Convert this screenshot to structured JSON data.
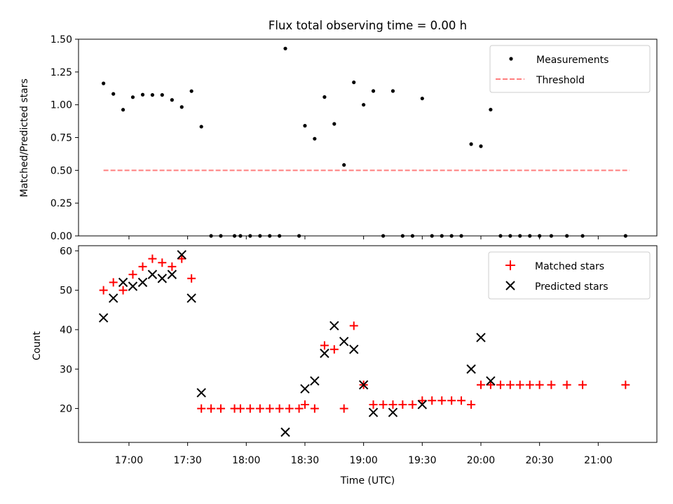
{
  "chart_data": [
    {
      "type": "scatter",
      "panel": "top",
      "title": "Flux total observing time = 0.00 h",
      "xlabel": "",
      "ylabel": "Matched/Predicted stars",
      "xlim": [
        16.57,
        21.5
      ],
      "ylim": [
        0,
        1.5
      ],
      "yticks": [
        0.0,
        0.25,
        0.5,
        0.75,
        1.0,
        1.25,
        1.5
      ],
      "ytick_labels": [
        "0.00",
        "0.25",
        "0.50",
        "0.75",
        "1.00",
        "1.25",
        "1.50"
      ],
      "legend": {
        "placement": "top-right",
        "entries": [
          "Measurements",
          "Threshold"
        ]
      },
      "threshold": {
        "name": "Threshold",
        "value": 0.5,
        "x_range": [
          16.783,
          21.267
        ],
        "color": "#ff7f7f"
      },
      "series": [
        {
          "name": "Measurements",
          "color": "#000000",
          "points": [
            [
              16.783,
              1.163
            ],
            [
              16.867,
              1.083
            ],
            [
              16.95,
              0.962
            ],
            [
              17.033,
              1.058
            ],
            [
              17.117,
              1.077
            ],
            [
              17.2,
              1.075
            ],
            [
              17.283,
              1.075
            ],
            [
              17.367,
              1.037
            ],
            [
              17.45,
              0.983
            ],
            [
              17.533,
              1.104
            ],
            [
              17.617,
              0.833
            ],
            [
              17.7,
              0.0
            ],
            [
              17.783,
              0.0
            ],
            [
              17.9,
              0.0
            ],
            [
              17.95,
              0.0
            ],
            [
              18.033,
              0.0
            ],
            [
              18.117,
              0.0
            ],
            [
              18.2,
              0.0
            ],
            [
              18.283,
              0.0
            ],
            [
              18.333,
              1.429
            ],
            [
              18.45,
              0.0
            ],
            [
              18.5,
              0.84
            ],
            [
              18.583,
              0.741
            ],
            [
              18.667,
              1.059
            ],
            [
              18.75,
              0.854
            ],
            [
              18.833,
              0.541
            ],
            [
              18.917,
              1.171
            ],
            [
              19.0,
              1.0
            ],
            [
              19.083,
              1.105
            ],
            [
              19.167,
              0.0
            ],
            [
              19.25,
              1.105
            ],
            [
              19.333,
              0.0
            ],
            [
              19.417,
              0.0
            ],
            [
              19.5,
              1.048
            ],
            [
              19.583,
              0.0
            ],
            [
              19.667,
              0.0
            ],
            [
              19.75,
              0.0
            ],
            [
              19.833,
              0.0
            ],
            [
              19.917,
              0.7
            ],
            [
              20.0,
              0.684
            ],
            [
              20.083,
              0.963
            ],
            [
              20.167,
              0.0
            ],
            [
              20.25,
              0.0
            ],
            [
              20.333,
              0.0
            ],
            [
              20.417,
              0.0
            ],
            [
              20.5,
              0.0
            ],
            [
              20.6,
              0.0
            ],
            [
              20.733,
              0.0
            ],
            [
              20.867,
              0.0
            ],
            [
              21.233,
              0.0
            ]
          ]
        }
      ]
    },
    {
      "type": "scatter",
      "panel": "bottom",
      "title": "",
      "xlabel": "Time (UTC)",
      "ylabel": "Count",
      "xlim": [
        16.57,
        21.5
      ],
      "ylim": [
        11.4,
        61.3
      ],
      "yticks": [
        20,
        30,
        40,
        50,
        60
      ],
      "ytick_labels": [
        "20",
        "30",
        "40",
        "50",
        "60"
      ],
      "xticks": [
        17.0,
        17.5,
        18.0,
        18.5,
        19.0,
        19.5,
        20.0,
        20.5,
        21.0
      ],
      "xtick_labels": [
        "17:00",
        "17:30",
        "18:00",
        "18:30",
        "19:00",
        "19:30",
        "20:00",
        "20:30",
        "21:00"
      ],
      "legend": {
        "placement": "top-right",
        "entries": [
          "Matched stars",
          "Predicted stars"
        ]
      },
      "series": [
        {
          "name": "Matched stars",
          "marker": "plus",
          "color": "#ff0000",
          "points": [
            [
              16.783,
              50
            ],
            [
              16.867,
              52
            ],
            [
              16.95,
              50
            ],
            [
              17.033,
              54
            ],
            [
              17.117,
              56
            ],
            [
              17.2,
              58
            ],
            [
              17.283,
              57
            ],
            [
              17.367,
              56
            ],
            [
              17.45,
              58
            ],
            [
              17.533,
              53
            ],
            [
              17.617,
              20
            ],
            [
              17.7,
              20
            ],
            [
              17.783,
              20
            ],
            [
              17.9,
              20
            ],
            [
              17.95,
              20
            ],
            [
              18.033,
              20
            ],
            [
              18.117,
              20
            ],
            [
              18.2,
              20
            ],
            [
              18.283,
              20
            ],
            [
              18.367,
              20
            ],
            [
              18.45,
              20
            ],
            [
              18.5,
              21
            ],
            [
              18.583,
              20
            ],
            [
              18.667,
              36
            ],
            [
              18.75,
              35
            ],
            [
              18.833,
              20
            ],
            [
              18.917,
              41
            ],
            [
              19.0,
              26
            ],
            [
              19.083,
              21
            ],
            [
              19.167,
              21
            ],
            [
              19.25,
              21
            ],
            [
              19.333,
              21
            ],
            [
              19.417,
              21
            ],
            [
              19.5,
              22
            ],
            [
              19.583,
              22
            ],
            [
              19.667,
              22
            ],
            [
              19.75,
              22
            ],
            [
              19.833,
              22
            ],
            [
              19.917,
              21
            ],
            [
              20.0,
              26
            ],
            [
              20.083,
              26
            ],
            [
              20.167,
              26
            ],
            [
              20.25,
              26
            ],
            [
              20.333,
              26
            ],
            [
              20.417,
              26
            ],
            [
              20.5,
              26
            ],
            [
              20.6,
              26
            ],
            [
              20.733,
              26
            ],
            [
              20.867,
              26
            ],
            [
              21.233,
              26
            ]
          ]
        },
        {
          "name": "Predicted stars",
          "marker": "x",
          "color": "#000000",
          "points": [
            [
              16.783,
              43
            ],
            [
              16.867,
              48
            ],
            [
              16.95,
              52
            ],
            [
              17.033,
              51
            ],
            [
              17.117,
              52
            ],
            [
              17.2,
              54
            ],
            [
              17.283,
              53
            ],
            [
              17.367,
              54
            ],
            [
              17.45,
              59
            ],
            [
              17.533,
              48
            ],
            [
              17.617,
              24
            ],
            [
              18.333,
              14
            ],
            [
              18.5,
              25
            ],
            [
              18.583,
              27
            ],
            [
              18.667,
              34
            ],
            [
              18.75,
              41
            ],
            [
              18.833,
              37
            ],
            [
              18.917,
              35
            ],
            [
              19.0,
              26
            ],
            [
              19.083,
              19
            ],
            [
              19.25,
              19
            ],
            [
              19.5,
              21
            ],
            [
              19.917,
              30
            ],
            [
              20.0,
              38
            ],
            [
              20.083,
              27
            ]
          ]
        }
      ]
    }
  ]
}
